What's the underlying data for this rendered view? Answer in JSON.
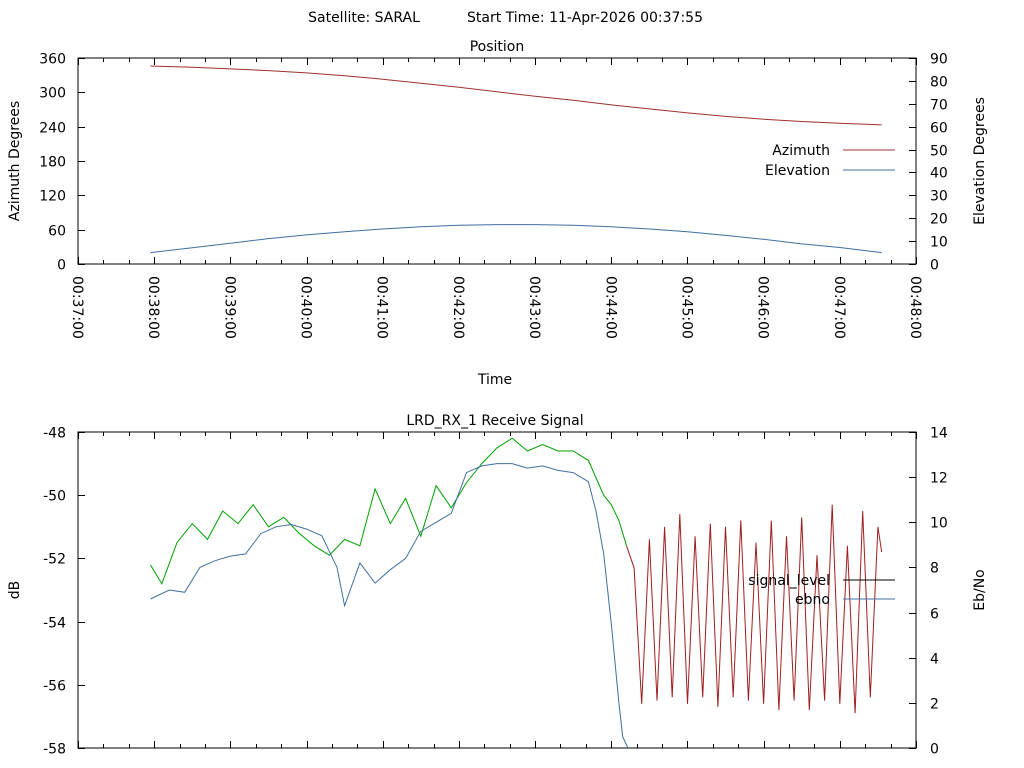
{
  "header": {
    "satellite": "Satellite: SARAL",
    "start_time": "Start Time: 11-Apr-2026 00:37:55"
  },
  "chart_data": [
    {
      "type": "line",
      "title": "Position",
      "xlabel": "Time",
      "ylabel": "Azimuth Degrees",
      "y2label": "Elevation Degrees",
      "xlim_minutes": [
        37,
        48
      ],
      "ylim": [
        0,
        360
      ],
      "y2lim": [
        0,
        90
      ],
      "x_ticks": [
        "00:37:00",
        "00:38:00",
        "00:39:00",
        "00:40:00",
        "00:41:00",
        "00:42:00",
        "00:43:00",
        "00:44:00",
        "00:45:00",
        "00:46:00",
        "00:47:00",
        "00:48:00"
      ],
      "y_ticks": [
        "0",
        "60",
        "120",
        "180",
        "240",
        "300",
        "360"
      ],
      "y2_ticks": [
        "0",
        "10",
        "20",
        "30",
        "40",
        "50",
        "60",
        "70",
        "80",
        "90"
      ],
      "legend_position": "right",
      "series": [
        {
          "name": "Azimuth",
          "axis": "y",
          "color": "#a03030",
          "x_minutes": [
            37.95,
            38.5,
            39.0,
            39.5,
            40.0,
            40.5,
            41.0,
            41.5,
            42.0,
            42.5,
            43.0,
            43.5,
            44.0,
            44.5,
            45.0,
            45.5,
            46.0,
            46.5,
            47.0,
            47.55
          ],
          "values": [
            346,
            344,
            341,
            338,
            334,
            329,
            323,
            316,
            309,
            301,
            293,
            286,
            278,
            271,
            264,
            258,
            253,
            249,
            246,
            243
          ]
        },
        {
          "name": "Elevation",
          "axis": "y2",
          "color": "#4070a0",
          "x_minutes": [
            37.95,
            38.5,
            39.0,
            39.5,
            40.0,
            40.5,
            41.0,
            41.5,
            42.0,
            42.5,
            43.0,
            43.5,
            44.0,
            44.5,
            45.0,
            45.5,
            46.0,
            46.5,
            47.0,
            47.55
          ],
          "values": [
            5,
            7.1,
            9.1,
            11.1,
            12.7,
            14.1,
            15.3,
            16.3,
            16.9,
            17.2,
            17.2,
            16.9,
            16.3,
            15.3,
            14.1,
            12.5,
            10.8,
            8.8,
            7.2,
            5
          ]
        }
      ]
    },
    {
      "type": "line",
      "title": "LRD_RX_1 Receive Signal",
      "xlabel": "",
      "ylabel": "dB",
      "y2label": "Eb/No",
      "xlim_minutes": [
        37,
        48
      ],
      "ylim": [
        -58,
        -48
      ],
      "y2lim": [
        0,
        14
      ],
      "y_ticks": [
        "-48",
        "-50",
        "-52",
        "-54",
        "-56",
        "-58"
      ],
      "y2_ticks": [
        "0",
        "2",
        "4",
        "6",
        "8",
        "10",
        "12",
        "14"
      ],
      "legend_position": "right",
      "legend": [
        {
          "name": "signal_level",
          "color": "#000000"
        },
        {
          "name": "ebno",
          "color": "#4070a0"
        }
      ],
      "series": [
        {
          "name": "signal_level",
          "axis": "y",
          "color_locked": "#00a000",
          "color_unlocked": "#a02020",
          "unlock_after_minute": 44.2,
          "x_minutes": [
            37.95,
            38.1,
            38.3,
            38.5,
            38.7,
            38.9,
            39.1,
            39.3,
            39.5,
            39.7,
            39.9,
            40.1,
            40.3,
            40.5,
            40.7,
            40.9,
            41.1,
            41.3,
            41.5,
            41.7,
            41.9,
            42.1,
            42.3,
            42.5,
            42.7,
            42.9,
            43.1,
            43.3,
            43.5,
            43.7,
            43.9,
            44.0,
            44.1,
            44.2,
            44.3,
            44.4,
            44.5,
            44.6,
            44.7,
            44.8,
            44.9,
            45.0,
            45.1,
            45.2,
            45.3,
            45.4,
            45.5,
            45.6,
            45.7,
            45.8,
            45.9,
            46.0,
            46.1,
            46.2,
            46.3,
            46.4,
            46.5,
            46.6,
            46.7,
            46.8,
            46.9,
            47.0,
            47.1,
            47.2,
            47.3,
            47.4,
            47.5,
            47.55
          ],
          "values": [
            -52.2,
            -52.8,
            -51.5,
            -50.9,
            -51.4,
            -50.5,
            -50.9,
            -50.3,
            -51.0,
            -50.7,
            -51.2,
            -51.6,
            -51.9,
            -51.4,
            -51.6,
            -49.8,
            -50.9,
            -50.1,
            -51.3,
            -49.7,
            -50.4,
            -49.6,
            -49.0,
            -48.5,
            -48.2,
            -48.6,
            -48.4,
            -48.6,
            -48.6,
            -48.9,
            -50.0,
            -50.3,
            -50.8,
            -51.6,
            -52.3,
            -56.6,
            -51.4,
            -56.5,
            -51.0,
            -56.4,
            -50.6,
            -56.6,
            -51.3,
            -56.4,
            -50.9,
            -56.7,
            -51.0,
            -56.4,
            -50.8,
            -56.5,
            -51.5,
            -56.6,
            -50.8,
            -56.8,
            -51.3,
            -56.5,
            -50.7,
            -56.8,
            -51.9,
            -56.5,
            -50.3,
            -56.6,
            -51.6,
            -56.9,
            -50.5,
            -56.4,
            -51.0,
            -51.8
          ]
        },
        {
          "name": "ebno",
          "axis": "y2",
          "color": "#4070a0",
          "x_minutes": [
            37.95,
            38.2,
            38.4,
            38.6,
            38.8,
            39.0,
            39.2,
            39.4,
            39.6,
            39.8,
            40.0,
            40.2,
            40.4,
            40.5,
            40.7,
            40.9,
            41.1,
            41.3,
            41.5,
            41.7,
            41.9,
            42.1,
            42.3,
            42.5,
            42.7,
            42.9,
            43.1,
            43.3,
            43.5,
            43.7,
            43.8,
            43.9,
            44.0,
            44.1,
            44.15,
            44.22
          ],
          "values": [
            6.6,
            7.0,
            6.9,
            8.0,
            8.3,
            8.5,
            8.6,
            9.5,
            9.8,
            9.9,
            9.7,
            9.4,
            8.0,
            6.3,
            8.2,
            7.3,
            7.9,
            8.4,
            9.6,
            10.0,
            10.4,
            12.2,
            12.5,
            12.6,
            12.6,
            12.4,
            12.5,
            12.3,
            12.2,
            11.8,
            10.5,
            8.6,
            5.5,
            2.0,
            0.5,
            0.0
          ]
        }
      ]
    }
  ]
}
